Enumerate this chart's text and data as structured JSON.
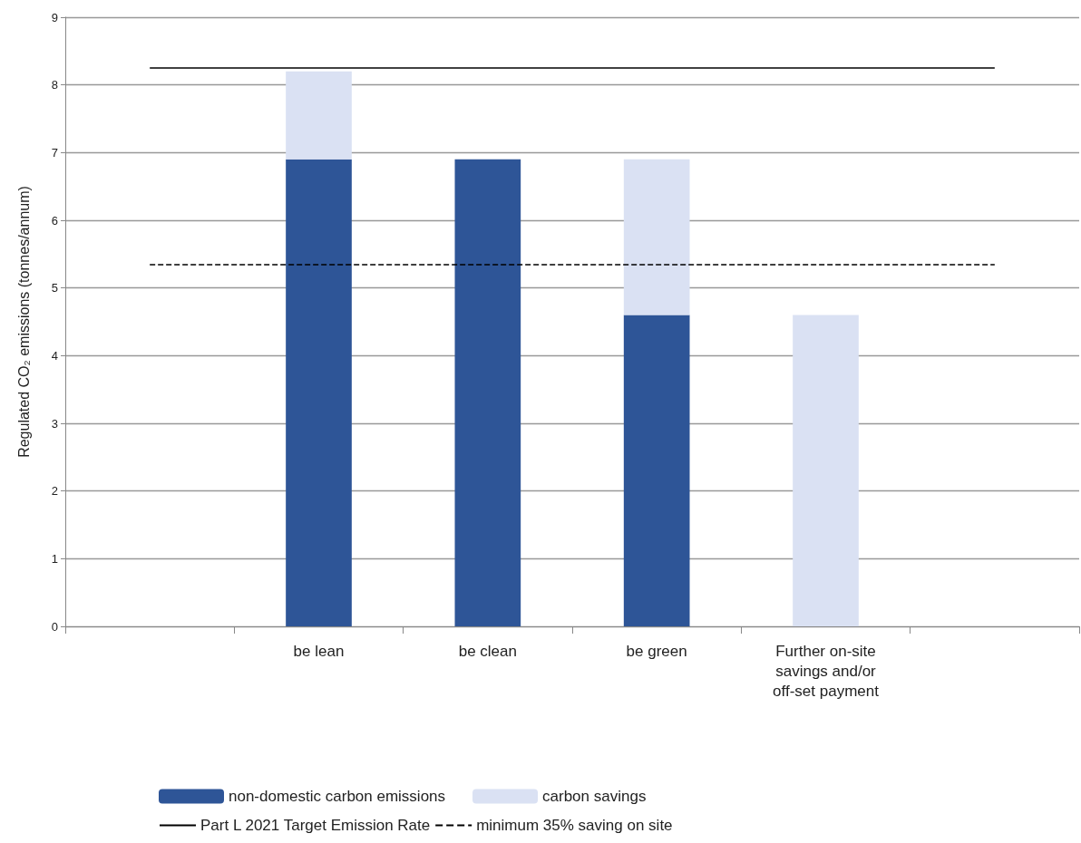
{
  "chart_data": {
    "type": "bar",
    "stacked": true,
    "ylabel": "Regulated CO₂ emissions (tonnes/annum)",
    "categories": [
      null,
      "be lean",
      "be clean",
      "be green",
      "Further on-site\nsavings and/or\noff-set payment",
      null
    ],
    "series": [
      {
        "name": "non-domestic carbon emissions",
        "color": "#2e5597",
        "values": [
          null,
          6.9,
          6.9,
          4.6,
          null,
          null
        ]
      },
      {
        "name": "carbon savings",
        "color": "#dae1f3",
        "values": [
          null,
          1.3,
          null,
          2.3,
          4.6,
          null
        ]
      }
    ],
    "ylim": [
      0,
      9
    ],
    "yticks": [
      0,
      1,
      2,
      3,
      4,
      5,
      6,
      7,
      8,
      9
    ],
    "grid": "y",
    "legend": "bottom",
    "ref_lines": [
      {
        "axis": "y",
        "value": 8.25,
        "label": "Part L 2021 Target Emission Rate",
        "color": "#000000",
        "line_style": "solid"
      },
      {
        "axis": "y",
        "value": 5.35,
        "label": "minimum 35% saving on site",
        "color": "#000000",
        "line_style": "dashed"
      }
    ]
  }
}
